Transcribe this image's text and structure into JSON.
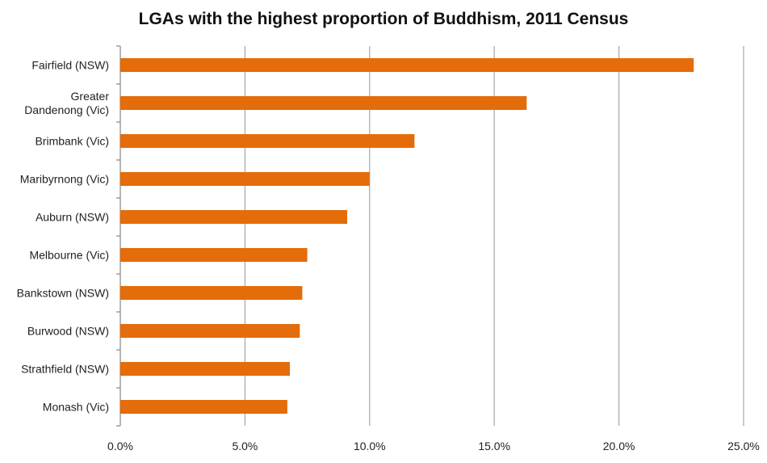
{
  "chart_data": {
    "type": "bar",
    "orientation": "horizontal",
    "title": "LGAs with the highest proportion of Buddhism, 2011 Census",
    "xlabel": "",
    "ylabel": "",
    "categories": [
      "Fairfield (NSW)",
      "Greater Dandenong (Vic)",
      "Brimbank (Vic)",
      "Maribyrnong (Vic)",
      "Auburn (NSW)",
      "Melbourne (Vic)",
      "Bankstown (NSW)",
      "Burwood (NSW)",
      "Strathfield (NSW)",
      "Monash (Vic)"
    ],
    "category_lines": [
      [
        "Fairfield (NSW)"
      ],
      [
        "Greater",
        "Dandenong (Vic)"
      ],
      [
        "Brimbank (Vic)"
      ],
      [
        "Maribyrnong (Vic)"
      ],
      [
        "Auburn (NSW)"
      ],
      [
        "Melbourne (Vic)"
      ],
      [
        "Bankstown (NSW)"
      ],
      [
        "Burwood (NSW)"
      ],
      [
        "Strathfield (NSW)"
      ],
      [
        "Monash (Vic)"
      ]
    ],
    "values": [
      23.0,
      16.3,
      11.8,
      10.0,
      9.1,
      7.5,
      7.3,
      7.2,
      6.8,
      6.7
    ],
    "xlim": [
      0,
      25
    ],
    "xticks": [
      0,
      5,
      10,
      15,
      20,
      25
    ],
    "xtick_labels": [
      "0.0%",
      "5.0%",
      "10.0%",
      "15.0%",
      "20.0%",
      "25.0%"
    ],
    "grid": true,
    "legend": "none",
    "colors": {
      "bar": "#E46C0A",
      "grid": "#A6A6A6",
      "axis": "#868686"
    }
  }
}
